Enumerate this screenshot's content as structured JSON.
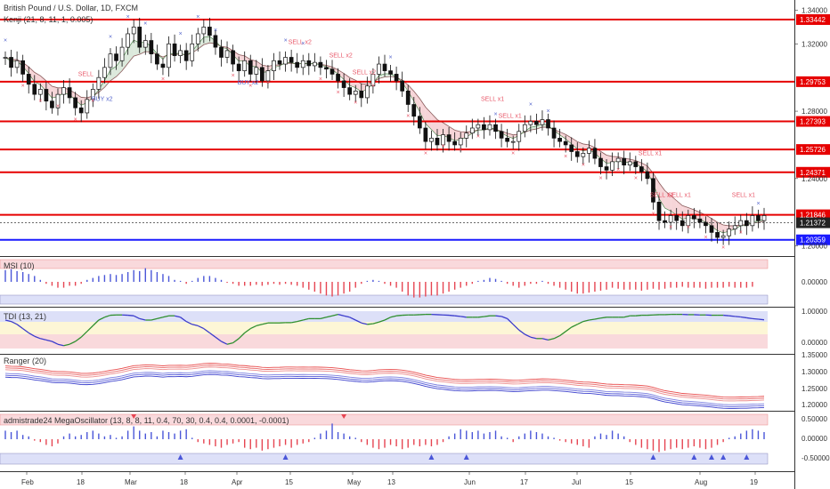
{
  "header": {
    "title": "British Pound / U.S. Dollar, 1D, FXCM",
    "kenji_label": "Kenji (21, 8, 11, 1, 0.005)"
  },
  "panels": {
    "msi": {
      "label": "MSI (10)",
      "ticks": [
        "0.00000"
      ]
    },
    "tdi": {
      "label": "TDI (13, 21)",
      "ticks": [
        "1.00000",
        "0.00000"
      ]
    },
    "ranger": {
      "label": "Ranger (20)",
      "ticks": [
        "1.35000",
        "1.30000",
        "1.25000",
        "1.20000"
      ]
    },
    "mega": {
      "label": "admistrade24 MegaOscillator (13, 8, 8, 11, 0.4, 70, 30, 0.4, 0.4, 0.0001, -0.0001)",
      "ticks": [
        "0.50000",
        "0.00000",
        "-0.50000"
      ]
    }
  },
  "colors": {
    "level_red": "#e60000",
    "level_blue": "#1a1aff",
    "bull_cloud": "#dce9dc",
    "bear_cloud": "#f6d5d8",
    "sell_text": "#e8596a",
    "buy_text": "#5566cc",
    "hist_red": "#e64552",
    "hist_blue": "#4a56d8"
  },
  "chart_data": {
    "type": "candlestick",
    "ylim": [
      1.195,
      1.345
    ],
    "price_ticks": [
      "1.34000",
      "1.32000",
      "1.28000",
      "1.24000",
      "1.20000"
    ],
    "x_labels": [
      "Feb",
      "18",
      "Mar",
      "18",
      "Apr",
      "15",
      "May",
      "13",
      "Jun",
      "17",
      "Jul",
      "15",
      "Aug",
      "19"
    ],
    "horizontal_levels": [
      {
        "label": "1.33442",
        "value": 1.33442,
        "color": "red"
      },
      {
        "label": "1.29753",
        "value": 1.29753,
        "color": "red"
      },
      {
        "label": "1.27393",
        "value": 1.27393,
        "color": "red"
      },
      {
        "label": "1.25726",
        "value": 1.25726,
        "color": "red"
      },
      {
        "label": "1.24371",
        "value": 1.24371,
        "color": "red"
      },
      {
        "label": "1.21846",
        "value": 1.21846,
        "color": "red"
      },
      {
        "label": "1.21372",
        "value": 1.21372,
        "color": "dark"
      },
      {
        "label": "1.20359",
        "value": 1.20359,
        "color": "blue"
      }
    ],
    "closes": [
      1.312,
      1.306,
      1.31,
      1.302,
      1.296,
      1.29,
      1.293,
      1.286,
      1.282,
      1.29,
      1.294,
      1.288,
      1.282,
      1.279,
      1.287,
      1.293,
      1.3,
      1.306,
      1.314,
      1.31,
      1.318,
      1.326,
      1.33,
      1.318,
      1.322,
      1.314,
      1.308,
      1.306,
      1.32,
      1.313,
      1.316,
      1.31,
      1.32,
      1.326,
      1.33,
      1.325,
      1.318,
      1.312,
      1.316,
      1.308,
      1.304,
      1.31,
      1.302,
      1.306,
      1.298,
      1.304,
      1.31,
      1.308,
      1.312,
      1.309,
      1.306,
      1.31,
      1.307,
      1.309,
      1.306,
      1.305,
      1.302,
      1.298,
      1.294,
      1.29,
      1.292,
      1.288,
      1.295,
      1.302,
      1.308,
      1.304,
      1.302,
      1.298,
      1.292,
      1.284,
      1.277,
      1.27,
      1.262,
      1.264,
      1.26,
      1.266,
      1.262,
      1.26,
      1.264,
      1.267,
      1.27,
      1.272,
      1.269,
      1.272,
      1.268,
      1.264,
      1.262,
      1.262,
      1.268,
      1.272,
      1.274,
      1.272,
      1.275,
      1.27,
      1.264,
      1.262,
      1.26,
      1.256,
      1.253,
      1.255,
      1.258,
      1.252,
      1.247,
      1.245,
      1.25,
      1.252,
      1.248,
      1.25,
      1.247,
      1.244,
      1.24,
      1.226,
      1.215,
      1.214,
      1.218,
      1.215,
      1.212,
      1.218,
      1.216,
      1.214,
      1.212,
      1.208,
      1.205,
      1.206,
      1.21,
      1.212,
      1.215,
      1.212,
      1.218,
      1.215,
      1.218
    ],
    "msi_values": [
      0.6,
      0.65,
      0.55,
      0.5,
      0.4,
      0.3,
      0.1,
      -0.1,
      -0.2,
      -0.3,
      -0.3,
      -0.2,
      -0.2,
      -0.1,
      0.1,
      0.2,
      0.3,
      0.35,
      0.4,
      0.35,
      0.4,
      0.5,
      0.6,
      0.55,
      0.7,
      0.6,
      0.5,
      0.4,
      0.3,
      0.1,
      0.05,
      -0.1,
      0.05,
      0.2,
      0.3,
      0.3,
      0.2,
      0.1,
      -0.05,
      -0.1,
      -0.2,
      -0.2,
      -0.2,
      -0.15,
      -0.2,
      -0.15,
      -0.1,
      -0.15,
      -0.1,
      -0.15,
      -0.2,
      -0.3,
      -0.4,
      -0.5,
      -0.6,
      -0.7,
      -0.75,
      -0.7,
      -0.6,
      -0.5,
      -0.3,
      -0.1,
      0.05,
      0.1,
      0.05,
      -0.1,
      -0.2,
      -0.3,
      -0.5,
      -0.7,
      -0.8,
      -0.8,
      -0.75,
      -0.7,
      -0.7,
      -0.6,
      -0.5,
      -0.4,
      -0.3,
      -0.2,
      -0.1,
      0.05,
      0.1,
      0.2,
      0.15,
      0.05,
      -0.1,
      -0.2,
      -0.3,
      -0.2,
      -0.1,
      -0.1,
      0.05,
      -0.1,
      -0.2,
      -0.3,
      -0.4,
      -0.5,
      -0.6,
      -0.6,
      -0.55,
      -0.5,
      -0.45,
      -0.4,
      -0.3,
      -0.35,
      -0.4,
      -0.4,
      -0.4,
      -0.45,
      -0.4,
      -0.35,
      -0.4,
      -0.35,
      -0.3,
      -0.3,
      -0.25,
      -0.3,
      -0.3,
      -0.3,
      -0.35,
      -0.3,
      -0.3,
      -0.3,
      -0.25,
      -0.3,
      -0.3,
      -0.3,
      -0.25
    ],
    "tdi_values": [
      0.75,
      0.7,
      0.6,
      0.45,
      0.3,
      0.18,
      0.1,
      0.05,
      0.0,
      -0.1,
      -0.15,
      -0.1,
      0.0,
      0.15,
      0.35,
      0.55,
      0.75,
      0.85,
      0.92,
      0.93,
      0.93,
      0.92,
      0.9,
      0.8,
      0.75,
      0.75,
      0.8,
      0.85,
      0.9,
      0.9,
      0.85,
      0.7,
      0.6,
      0.55,
      0.45,
      0.3,
      0.15,
      0.0,
      -0.1,
      -0.05,
      0.1,
      0.3,
      0.45,
      0.55,
      0.6,
      0.65,
      0.65,
      0.65,
      0.66,
      0.66,
      0.7,
      0.75,
      0.8,
      0.8,
      0.8,
      0.85,
      0.9,
      0.95,
      0.9,
      0.85,
      0.75,
      0.65,
      0.6,
      0.62,
      0.68,
      0.75,
      0.85,
      0.9,
      0.92,
      0.93,
      0.93,
      0.94,
      0.95,
      0.95,
      0.94,
      0.93,
      0.92,
      0.9,
      0.88,
      0.85,
      0.85,
      0.85,
      0.87,
      0.9,
      0.9,
      0.88,
      0.8,
      0.6,
      0.4,
      0.25,
      0.15,
      0.1,
      0.1,
      0.05,
      0.1,
      0.2,
      0.35,
      0.5,
      0.6,
      0.7,
      0.75,
      0.78,
      0.82,
      0.85,
      0.85,
      0.85,
      0.85,
      0.9,
      0.9,
      0.92,
      0.92,
      0.93,
      0.94,
      0.94,
      0.95,
      0.95,
      0.95,
      0.94,
      0.94,
      0.93,
      0.93,
      0.92,
      0.92,
      0.92,
      0.9,
      0.88,
      0.86,
      0.83,
      0.8,
      0.78,
      0.76
    ],
    "mega_values": [
      0.3,
      0.25,
      0.3,
      0.15,
      0.1,
      -0.05,
      -0.1,
      -0.2,
      -0.25,
      -0.15,
      0.1,
      0.2,
      0.1,
      0.15,
      0.25,
      0.3,
      0.2,
      0.1,
      0.15,
      0.05,
      0.1,
      0.3,
      0.45,
      0.3,
      0.2,
      0.25,
      0.1,
      0.3,
      0.25,
      0.2,
      0.3,
      0.35,
      0.05,
      -0.1,
      -0.15,
      -0.2,
      -0.25,
      -0.3,
      -0.2,
      -0.15,
      -0.1,
      -0.3,
      -0.35,
      -0.3,
      -0.4,
      -0.35,
      -0.3,
      -0.25,
      -0.2,
      -0.3,
      -0.2,
      -0.15,
      -0.1,
      0.05,
      0.2,
      0.3,
      0.55,
      0.25,
      0.2,
      0.1,
      0.05,
      -0.1,
      -0.2,
      -0.3,
      -0.35,
      -0.3,
      -0.2,
      -0.25,
      -0.35,
      -0.3,
      -0.2,
      -0.25,
      -0.2,
      -0.25,
      -0.2,
      -0.1,
      0.1,
      0.2,
      0.35,
      0.3,
      0.25,
      0.3,
      0.2,
      0.25,
      0.3,
      0.1,
      0.05,
      -0.1,
      0.1,
      0.2,
      0.3,
      0.25,
      0.2,
      0.1,
      0.05,
      -0.05,
      -0.1,
      -0.15,
      -0.2,
      -0.25,
      -0.3,
      0.1,
      0.2,
      0.15,
      0.3,
      0.2,
      0.1,
      -0.1,
      -0.2,
      -0.3,
      -0.35,
      -0.4,
      -0.45,
      -0.4,
      -0.35,
      -0.3,
      -0.35,
      -0.3,
      -0.25,
      -0.3,
      -0.35,
      -0.3,
      -0.2,
      -0.1,
      0.05,
      0.1,
      0.2,
      0.3,
      0.35,
      0.3,
      0.25
    ]
  },
  "signals": {
    "sell": [
      "SELL",
      "SELL x2",
      "SELL x2",
      "SELL x2",
      "SELL x1",
      "SELL x1",
      "SELL x1",
      "SELL x1",
      "SELL x1",
      "SELL x1"
    ],
    "buy": [
      "BUY x2",
      "BUY x2"
    ]
  }
}
